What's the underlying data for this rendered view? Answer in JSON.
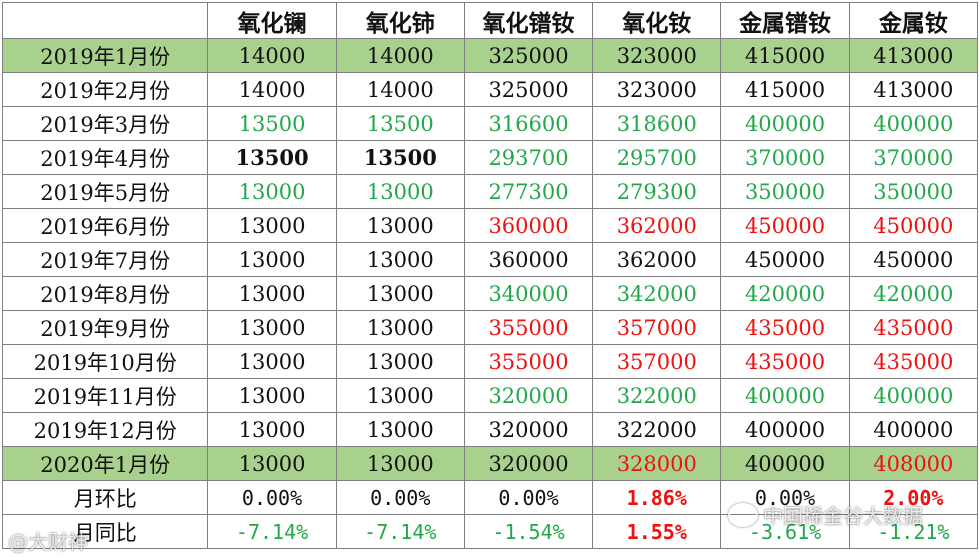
{
  "header": [
    "",
    "氧化镧",
    "氧化铈",
    "氧化镨钕",
    "氧化钕",
    "金属镨钕",
    "金属钕"
  ],
  "rows": [
    {
      "label": "2019年1月份",
      "values": [
        "14000",
        "14000",
        "325000",
        "323000",
        "415000",
        "413000"
      ],
      "highlight": true,
      "styles": [
        "",
        "",
        "",
        "",
        "",
        ""
      ]
    },
    {
      "label": "2019年2月份",
      "values": [
        "14000",
        "14000",
        "325000",
        "323000",
        "415000",
        "413000"
      ],
      "highlight": false,
      "styles": [
        "",
        "",
        "",
        "",
        "",
        ""
      ]
    },
    {
      "label": "2019年3月份",
      "values": [
        "13500",
        "13500",
        "316600",
        "318600",
        "400000",
        "400000"
      ],
      "highlight": false,
      "styles": [
        "green",
        "green",
        "green",
        "green",
        "green",
        "green"
      ]
    },
    {
      "label": "2019年4月份",
      "values": [
        "13500",
        "13500",
        "293700",
        "295700",
        "370000",
        "370000"
      ],
      "highlight": false,
      "styles": [
        "bold",
        "bold",
        "green",
        "green",
        "green",
        "green"
      ]
    },
    {
      "label": "2019年5月份",
      "values": [
        "13000",
        "13000",
        "277300",
        "279300",
        "350000",
        "350000"
      ],
      "highlight": false,
      "styles": [
        "green",
        "green",
        "green",
        "green",
        "green",
        "green"
      ]
    },
    {
      "label": "2019年6月份",
      "values": [
        "13000",
        "13000",
        "360000",
        "362000",
        "450000",
        "450000"
      ],
      "highlight": false,
      "styles": [
        "",
        "",
        "red",
        "red",
        "red",
        "red"
      ]
    },
    {
      "label": "2019年7月份",
      "values": [
        "13000",
        "13000",
        "360000",
        "362000",
        "450000",
        "450000"
      ],
      "highlight": false,
      "styles": [
        "",
        "",
        "",
        "",
        "",
        ""
      ]
    },
    {
      "label": "2019年8月份",
      "values": [
        "13000",
        "13000",
        "340000",
        "342000",
        "420000",
        "420000"
      ],
      "highlight": false,
      "styles": [
        "",
        "",
        "green",
        "green",
        "green",
        "green"
      ]
    },
    {
      "label": "2019年9月份",
      "values": [
        "13000",
        "13000",
        "355000",
        "357000",
        "435000",
        "435000"
      ],
      "highlight": false,
      "styles": [
        "",
        "",
        "red",
        "red",
        "red",
        "red"
      ]
    },
    {
      "label": "2019年10月份",
      "values": [
        "13000",
        "13000",
        "355000",
        "357000",
        "435000",
        "435000"
      ],
      "highlight": false,
      "styles": [
        "",
        "",
        "red",
        "red",
        "red",
        "red"
      ]
    },
    {
      "label": "2019年11月份",
      "values": [
        "13000",
        "13000",
        "320000",
        "322000",
        "400000",
        "400000"
      ],
      "highlight": false,
      "styles": [
        "",
        "",
        "green",
        "green",
        "green",
        "green"
      ]
    },
    {
      "label": "2019年12月份",
      "values": [
        "13000",
        "13000",
        "320000",
        "322000",
        "400000",
        "400000"
      ],
      "highlight": false,
      "styles": [
        "",
        "",
        "",
        "",
        "",
        ""
      ]
    },
    {
      "label": "2020年1月份",
      "values": [
        "13000",
        "13000",
        "320000",
        "328000",
        "400000",
        "408000"
      ],
      "highlight": true,
      "styles": [
        "",
        "",
        "",
        "red",
        "",
        "red"
      ]
    },
    {
      "label": "月环比",
      "values": [
        "0.00%",
        "0.00%",
        "0.00%",
        "1.86%",
        "0.00%",
        "2.00%"
      ],
      "highlight": false,
      "styles": [
        "pct",
        "pct",
        "pct",
        "pct red bold",
        "pct",
        "pct red bold"
      ]
    },
    {
      "label": "月同比",
      "values": [
        "-7.14%",
        "-7.14%",
        "-1.54%",
        "1.55%",
        "-3.61%",
        "-1.21%"
      ],
      "highlight": false,
      "styles": [
        "pct green",
        "pct green",
        "pct green",
        "pct red bold",
        "pct green",
        "pct green"
      ]
    }
  ],
  "watermarks": {
    "left": "@大财神",
    "right": "中国稀金谷大数据"
  }
}
